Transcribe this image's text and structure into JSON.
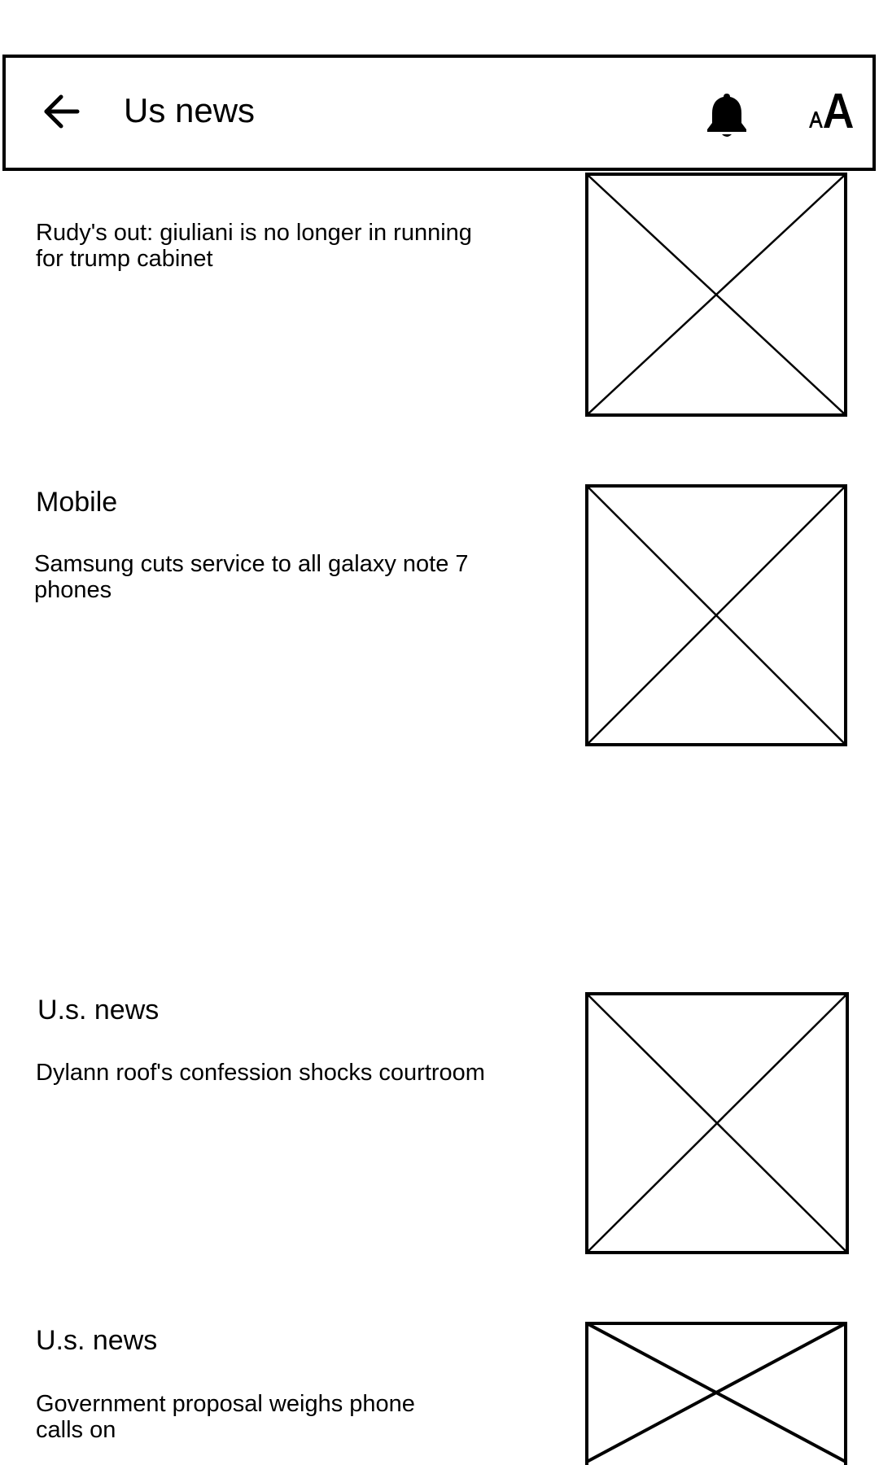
{
  "toolbar": {
    "title": "Us news",
    "back_icon": "arrow-left-icon",
    "notifications_icon": "bell-icon",
    "text_size_icon": "text-size-icon"
  },
  "feed": {
    "items": [
      {
        "category": "",
        "headline": "Rudy's out: giuliani is no longer in running for trump cabinet",
        "image_icon": "image-placeholder-icon"
      },
      {
        "category": "Mobile",
        "headline": "Samsung cuts service to all galaxy note 7 phones",
        "image_icon": "image-placeholder-icon"
      },
      {
        "category": "U.s. news",
        "headline": "Dylann roof's confession shocks courtroom",
        "image_icon": "image-placeholder-icon"
      },
      {
        "category": "U.s. news",
        "headline": "Government proposal weighs phone calls on",
        "image_icon": "image-placeholder-icon"
      }
    ]
  }
}
